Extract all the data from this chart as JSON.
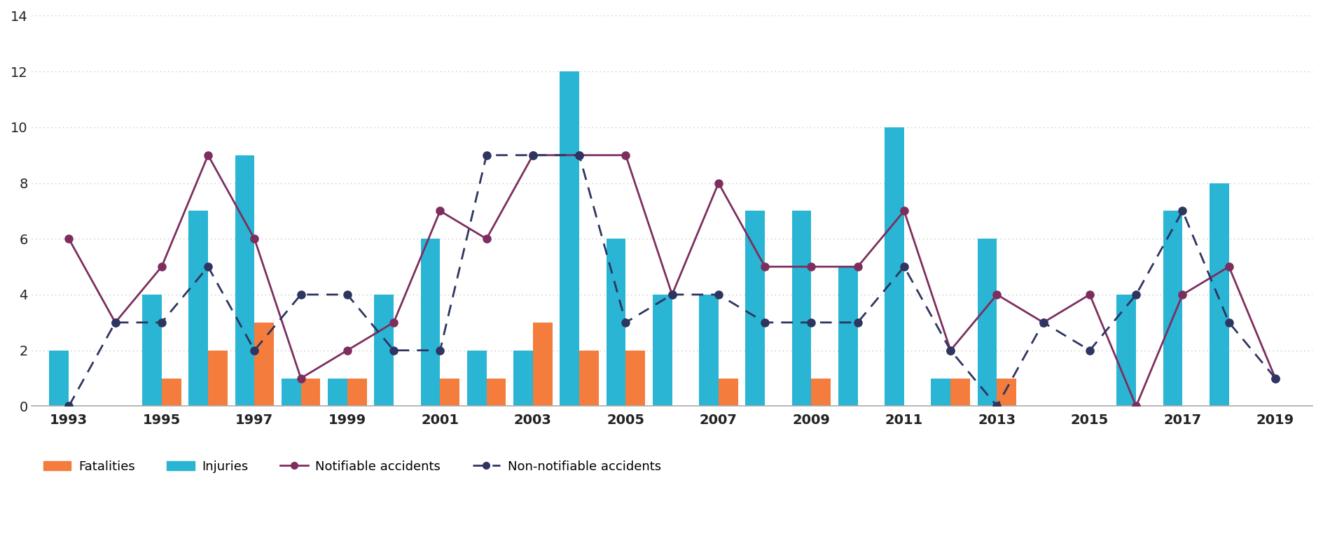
{
  "years": [
    1993,
    1994,
    1995,
    1996,
    1997,
    1998,
    1999,
    2000,
    2001,
    2002,
    2003,
    2004,
    2005,
    2006,
    2007,
    2008,
    2009,
    2010,
    2011,
    2012,
    2013,
    2014,
    2015,
    2016,
    2017,
    2018,
    2019
  ],
  "fatalities": [
    0,
    0,
    1,
    2,
    3,
    1,
    1,
    0,
    1,
    1,
    3,
    2,
    2,
    0,
    1,
    0,
    1,
    0,
    0,
    1,
    1,
    0,
    0,
    0,
    0,
    0,
    0
  ],
  "injuries": [
    2,
    0,
    4,
    7,
    9,
    1,
    1,
    4,
    6,
    2,
    2,
    12,
    6,
    4,
    4,
    7,
    7,
    5,
    10,
    1,
    6,
    0,
    0,
    4,
    7,
    8,
    0
  ],
  "notifiable": [
    6,
    3,
    5,
    9,
    6,
    1,
    2,
    3,
    7,
    6,
    9,
    9,
    9,
    4,
    8,
    5,
    5,
    5,
    7,
    2,
    4,
    3,
    4,
    0,
    4,
    5,
    1
  ],
  "non_notifiable": [
    0,
    3,
    3,
    5,
    2,
    4,
    4,
    2,
    2,
    9,
    9,
    9,
    3,
    4,
    4,
    3,
    3,
    3,
    5,
    2,
    0,
    3,
    2,
    4,
    7,
    3,
    1
  ],
  "fatalities_color": "#f47c3c",
  "injuries_color": "#29b5d3",
  "notifiable_color": "#7d2e5e",
  "non_notifiable_color": "#2e3560",
  "ylim": [
    0,
    14
  ],
  "yticks": [
    0,
    2,
    4,
    6,
    8,
    10,
    12,
    14
  ],
  "xtick_years": [
    1993,
    1995,
    1997,
    1999,
    2001,
    2003,
    2005,
    2007,
    2009,
    2011,
    2013,
    2015,
    2017,
    2019
  ],
  "legend_labels": [
    "Fatalities",
    "Injuries",
    "Notifiable accidents",
    "Non-notifiable accidents"
  ],
  "background_color": "#ffffff",
  "grid_color": "#c8c8c8",
  "bar_width": 0.42,
  "xlim_left": 1992.2,
  "xlim_right": 2019.8
}
